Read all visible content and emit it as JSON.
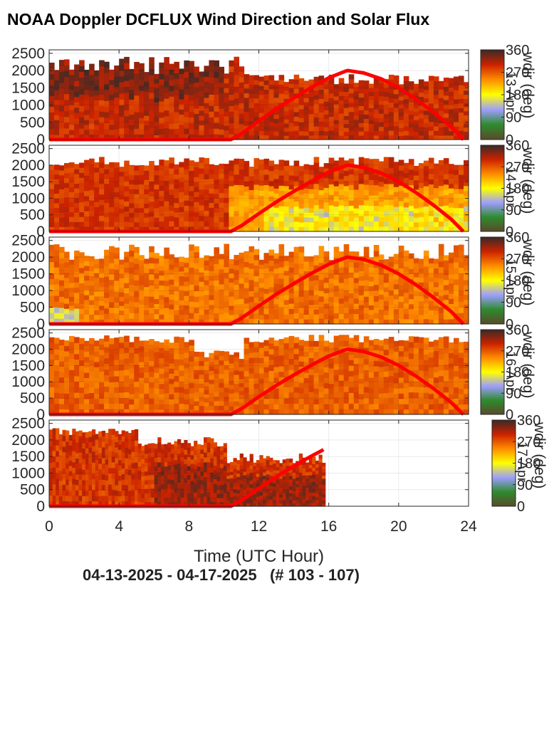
{
  "title": "NOAA Doppler DCFLUX Wind Direction and Solar Flux",
  "footer": "04-13-2025 - 04-17-2025   (# 103 - 107)",
  "colors": {
    "solar_flux_line": "#ff0000",
    "colormap": [
      "#5a4a2a",
      "#2e8b2e",
      "#9e9eff",
      "#ffff00",
      "#ff8c00",
      "#cc2200",
      "#3a2a26"
    ]
  },
  "chart_data": {
    "type": "heatmap",
    "xlabel": "Time (UTC Hour)",
    "x_ticks": [
      0,
      4,
      8,
      12,
      16,
      20,
      24
    ],
    "xlim": [
      0,
      24
    ],
    "y_ticks": [
      0,
      500,
      1000,
      1500,
      2000,
      2500
    ],
    "ylim": [
      0,
      2600
    ],
    "colorbar": {
      "label": "wdir (deg)",
      "ticks": [
        0,
        90,
        180,
        270,
        360
      ]
    },
    "panels": [
      {
        "day_label": "13-Apr",
        "data_end_hour": 24,
        "flux_end_hour": 23.7
      },
      {
        "day_label": "14-Apr",
        "data_end_hour": 24,
        "flux_end_hour": 23.7
      },
      {
        "day_label": "15-Apr",
        "data_end_hour": 24,
        "flux_end_hour": 23.7
      },
      {
        "day_label": "16-Apr",
        "data_end_hour": 24,
        "flux_end_hour": 23.7
      },
      {
        "day_label": "17-Apr",
        "data_end_hour": 15.8,
        "flux_end_hour": 15.7
      }
    ],
    "solar_flux": {
      "name": "",
      "x": [
        0,
        10.4,
        11,
        12,
        13,
        14,
        15,
        16,
        17,
        17.1,
        18,
        19,
        20,
        21,
        22,
        23,
        23.7
      ],
      "y": [
        0,
        0,
        170,
        540,
        890,
        1210,
        1510,
        1790,
        1990,
        2000,
        1930,
        1760,
        1500,
        1170,
        790,
        370,
        0
      ]
    }
  }
}
